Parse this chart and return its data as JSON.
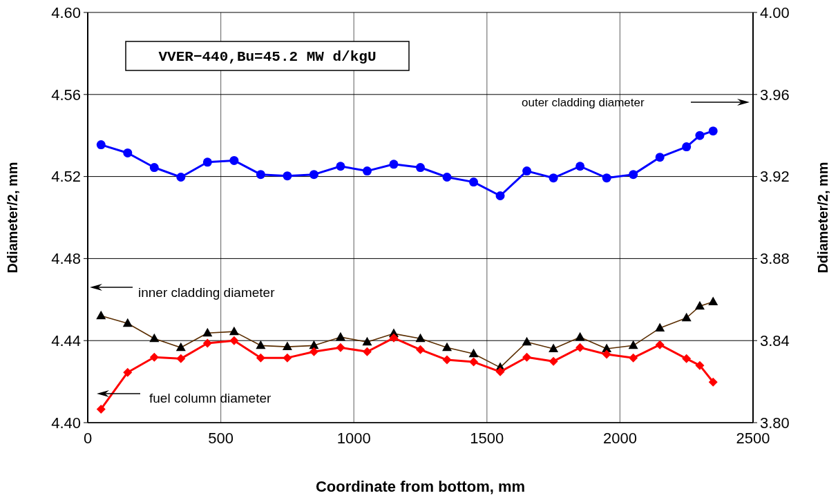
{
  "chart_data": {
    "type": "line",
    "xlabel": "Coordinate from bottom, mm",
    "ylabel": "Ddiameter/2, mm",
    "y2label": "Ddiameter/2, mm",
    "annotations": [
      "VVER−440,Bu=45.2 MW d/kgU",
      "outer cladding diameter",
      "inner cladding diameter",
      "fuel column diameter"
    ],
    "x": [
      50,
      150,
      250,
      350,
      450,
      550,
      650,
      750,
      850,
      950,
      1050,
      1150,
      1250,
      1350,
      1450,
      1550,
      1650,
      1750,
      1850,
      1950,
      2050,
      2150,
      2250,
      2300,
      2350
    ],
    "series": [
      {
        "color": "#0000ff",
        "marker": "circle",
        "axis": "y2",
        "values": [
          3.9355,
          3.9315,
          3.9244,
          3.9197,
          3.927,
          3.9278,
          3.921,
          3.9203,
          3.921,
          3.925,
          3.9227,
          3.926,
          3.9244,
          3.9197,
          3.9173,
          3.9106,
          3.9227,
          3.9193,
          3.925,
          3.9193,
          3.921,
          3.9294,
          3.9345,
          3.94,
          3.9422
        ]
      },
      {
        "color": "#000000",
        "marker": "triangle",
        "values": [
          4.4521,
          4.4484,
          4.441,
          4.4366,
          4.4437,
          4.4444,
          4.4376,
          4.437,
          4.4376,
          4.4417,
          4.4393,
          4.4434,
          4.441,
          4.4366,
          4.4336,
          4.4269,
          4.4393,
          4.436,
          4.4417,
          4.436,
          4.4376,
          4.4461,
          4.4511,
          4.4568,
          4.4589
        ]
      },
      {
        "color": "#ff0000",
        "marker": "diamond",
        "values": [
          4.4066,
          4.4245,
          4.4319,
          4.4312,
          4.4387,
          4.44,
          4.4316,
          4.4316,
          4.4346,
          4.4366,
          4.4346,
          4.4413,
          4.4356,
          4.4306,
          4.4296,
          4.4248,
          4.4319,
          4.4299,
          4.4366,
          4.4333,
          4.4316,
          4.438,
          4.4312,
          4.4279,
          4.4198
        ]
      }
    ],
    "xlim": [
      0,
      2500
    ],
    "xticks": [
      0,
      500,
      1000,
      1500,
      2000,
      2500
    ],
    "ylim": [
      4.4,
      4.6
    ],
    "yticks": [
      {
        "value": 4.4,
        "label": "4.40"
      },
      {
        "value": 4.44,
        "label": "4.44"
      },
      {
        "value": 4.48,
        "label": "4.48"
      },
      {
        "value": 4.52,
        "label": "4.52"
      },
      {
        "value": 4.56,
        "label": "4.56"
      },
      {
        "value": 4.6,
        "label": "4.60"
      }
    ],
    "y2lim": [
      3.8,
      4.0
    ],
    "y2ticks": [
      {
        "value": 3.8,
        "label": "3.80"
      },
      {
        "value": 3.84,
        "label": "3.84"
      },
      {
        "value": 3.88,
        "label": "3.88"
      },
      {
        "value": 3.92,
        "label": "3.92"
      },
      {
        "value": 3.96,
        "label": "3.96"
      },
      {
        "value": 4.0,
        "label": "4.00"
      }
    ],
    "grid": true
  }
}
